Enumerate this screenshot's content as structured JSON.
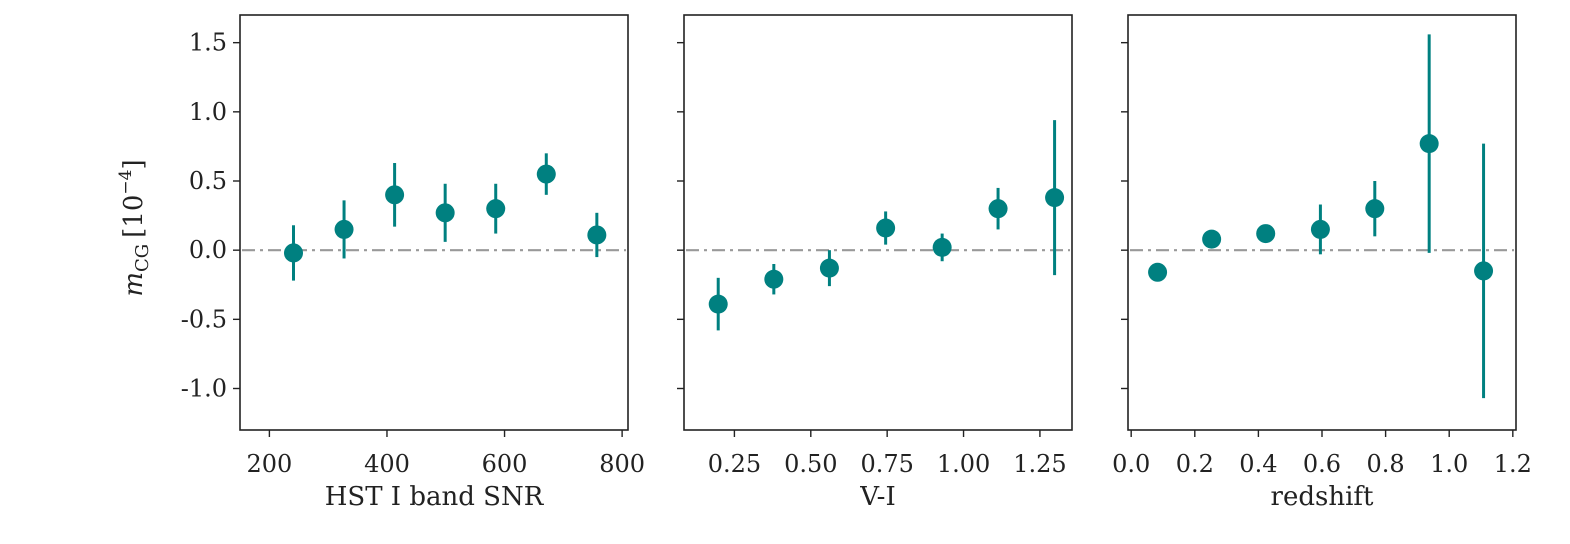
{
  "figure": {
    "ylabel_main": "m",
    "ylabel_sub": "CG",
    "ylabel_unit": "[10",
    "ylabel_exp": "−4",
    "ylabel_close": "]"
  },
  "colors": {
    "points": "#008080",
    "reference": "#999999",
    "axes": "#222222"
  },
  "chart_data": [
    {
      "type": "scatter",
      "xlabel": "HST I band SNR",
      "ylabel": "m_CG [10^-4]",
      "xlim": [
        150,
        810
      ],
      "ylim": [
        -1.3,
        1.7
      ],
      "xticks": [
        200,
        400,
        600,
        800
      ],
      "xtick_labels": [
        "200",
        "400",
        "600",
        "800"
      ],
      "yticks": [
        -1.0,
        -0.5,
        0.0,
        0.5,
        1.0,
        1.5
      ],
      "ytick_labels": [
        "-1.0",
        "-0.5",
        "0.0",
        "0.5",
        "1.0",
        "1.5"
      ],
      "reference_line": 0.0,
      "x": [
        241,
        327,
        413,
        499,
        585,
        671,
        757
      ],
      "y": [
        -0.02,
        0.15,
        0.4,
        0.27,
        0.3,
        0.55,
        0.11
      ],
      "yerr": [
        0.2,
        0.21,
        0.23,
        0.21,
        0.18,
        0.15,
        0.16
      ]
    },
    {
      "type": "scatter",
      "xlabel": "V-I",
      "ylabel": "",
      "xlim": [
        0.085,
        1.355
      ],
      "ylim": [
        -1.3,
        1.7
      ],
      "xticks": [
        0.25,
        0.5,
        0.75,
        1.0,
        1.25
      ],
      "xtick_labels": [
        "0.25",
        "0.50",
        "0.75",
        "1.00",
        "1.25"
      ],
      "yticks": [
        -1.0,
        -0.5,
        0.0,
        0.5,
        1.0,
        1.5
      ],
      "ytick_labels": [],
      "reference_line": 0.0,
      "x": [
        0.197,
        0.379,
        0.561,
        0.745,
        0.93,
        1.113,
        1.298
      ],
      "y": [
        -0.39,
        -0.21,
        -0.13,
        0.16,
        0.02,
        0.3,
        0.38
      ],
      "yerr": [
        0.19,
        0.11,
        0.13,
        0.12,
        0.1,
        0.15,
        0.56
      ]
    },
    {
      "type": "scatter",
      "xlabel": "redshift",
      "ylabel": "",
      "xlim": [
        -0.01,
        1.21
      ],
      "ylim": [
        -1.3,
        1.7
      ],
      "xticks": [
        0.0,
        0.2,
        0.4,
        0.6,
        0.8,
        1.0,
        1.2
      ],
      "xtick_labels": [
        "0.0",
        "0.2",
        "0.4",
        "0.6",
        "0.8",
        "1.0",
        "1.2"
      ],
      "yticks": [
        -1.0,
        -0.5,
        0.0,
        0.5,
        1.0,
        1.5
      ],
      "ytick_labels": [],
      "reference_line": 0.0,
      "x": [
        0.083,
        0.253,
        0.423,
        0.595,
        0.766,
        0.937,
        1.108
      ],
      "y": [
        -0.16,
        0.08,
        0.12,
        0.15,
        0.3,
        0.77,
        -0.15
      ],
      "yerr": [
        0,
        0,
        0,
        0.18,
        0.2,
        0.79,
        0.92
      ]
    }
  ]
}
